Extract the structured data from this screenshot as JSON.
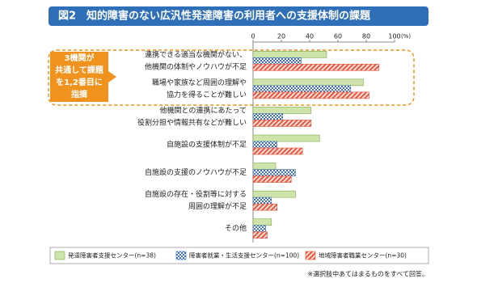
{
  "chart_data": {
    "type": "barh",
    "title": "図2　知的障害のない広汎性発達障害の利用者への支援体制の課題",
    "xlabel": "(%)",
    "categories": [
      [
        "連携できる適当な機関がない、",
        "他機関の体制やノウハウが不足"
      ],
      [
        "職場や家族など周囲の理解や",
        "協力を得ることが難しい"
      ],
      [
        "他機関との連携にあたって",
        "役割分担や情報共有などが難しい"
      ],
      [
        "自施設の支援体制が不足"
      ],
      [
        "自施設の支援のノウハウが不足"
      ],
      [
        "自施設の存在・役割等に対する",
        "周囲の理解が不足"
      ],
      [
        "その他"
      ]
    ],
    "series": [
      {
        "name": "発達障害者支援センター(n=38)",
        "color": "#7aa84a",
        "pattern": "solid",
        "values": [
          52,
          78,
          41,
          47,
          16,
          30,
          13
        ]
      },
      {
        "name": "障害者就業・生活支援センター(n=100)",
        "color": "#3d6fb5",
        "pattern": "checker",
        "values": [
          34,
          69,
          21,
          17,
          30,
          13,
          9
        ]
      },
      {
        "name": "地域障害者職業センター(n=30)",
        "color": "#e8543c",
        "pattern": "hatch",
        "values": [
          89,
          82,
          41,
          35,
          27,
          17,
          10
        ]
      }
    ],
    "xlim": [
      0,
      100
    ],
    "xticks": [
      0,
      20,
      40,
      60,
      80,
      100
    ],
    "annotation": [
      "3機関が",
      "共通して課題",
      "を1,2番目に",
      "指摘"
    ],
    "note": "※選択肢中あてはまるものをすべて回答。"
  }
}
